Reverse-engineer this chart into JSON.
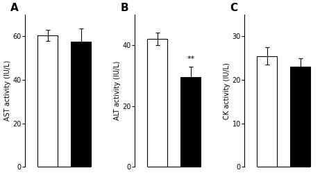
{
  "panels": [
    {
      "label": "A",
      "ylabel": "AST activity (IU/L)",
      "ylim": [
        0,
        70
      ],
      "yticks": [
        0,
        20,
        40,
        60
      ],
      "bars": [
        {
          "value": 60.5,
          "error": 2.5,
          "color": "white",
          "edgecolor": "black"
        },
        {
          "value": 57.5,
          "error": 6.0,
          "color": "black",
          "edgecolor": "black"
        }
      ],
      "annotation": null
    },
    {
      "label": "B",
      "ylabel": "ALT activity (IU/L)",
      "ylim": [
        0,
        50
      ],
      "yticks": [
        0,
        20,
        40
      ],
      "bars": [
        {
          "value": 42.0,
          "error": 2.0,
          "color": "white",
          "edgecolor": "black"
        },
        {
          "value": 29.5,
          "error": 3.5,
          "color": "black",
          "edgecolor": "black"
        }
      ],
      "annotation": "**"
    },
    {
      "label": "C",
      "ylabel": "CK activity (IU/L)",
      "ylim": [
        0,
        35
      ],
      "yticks": [
        0,
        10,
        20,
        30
      ],
      "bars": [
        {
          "value": 25.5,
          "error": 2.0,
          "color": "white",
          "edgecolor": "black"
        },
        {
          "value": 23.0,
          "error": 2.0,
          "color": "black",
          "edgecolor": "black"
        }
      ],
      "annotation": null
    }
  ],
  "bar_width": 0.18,
  "x_positions": [
    0.28,
    0.58
  ],
  "xlim": [
    0.08,
    0.8
  ],
  "figsize": [
    4.74,
    2.52
  ],
  "dpi": 100,
  "background_color": "white"
}
